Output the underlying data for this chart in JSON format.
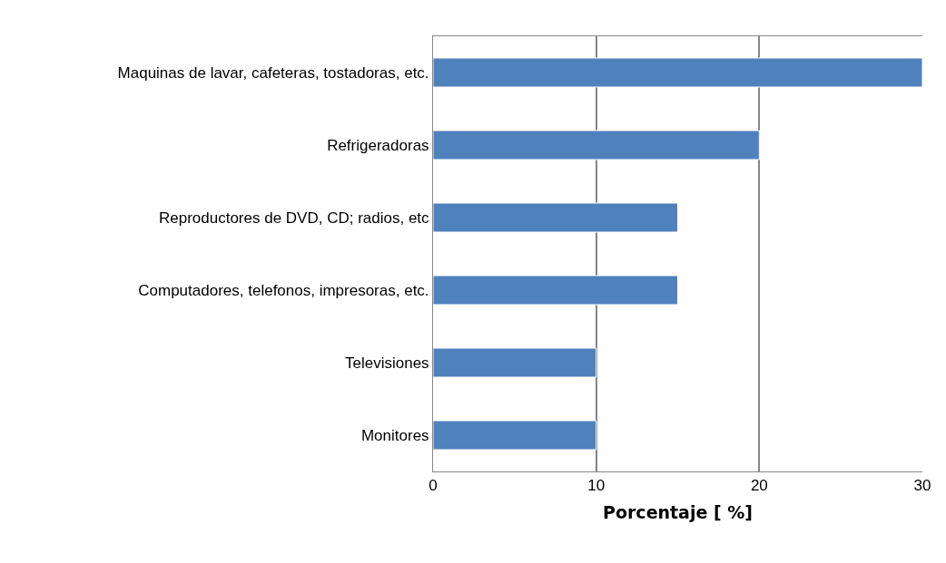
{
  "chart_data": {
    "type": "bar",
    "orientation": "horizontal",
    "xlabel": "Porcentaje [ %]",
    "categories": [
      "Maquinas de lavar, cafeteras, tostadoras, etc.",
      "Refrigeradoras",
      "Reproductores de DVD, CD; radios, etc",
      "Computadores, telefonos, impresoras, etc.",
      "Televisiones",
      "Monitores"
    ],
    "values": [
      30,
      20,
      15,
      15,
      10,
      10
    ],
    "color": "#4f81bd",
    "xlim": [
      0,
      30
    ],
    "xticks": [
      0,
      10,
      20,
      30
    ],
    "grid": "x"
  }
}
